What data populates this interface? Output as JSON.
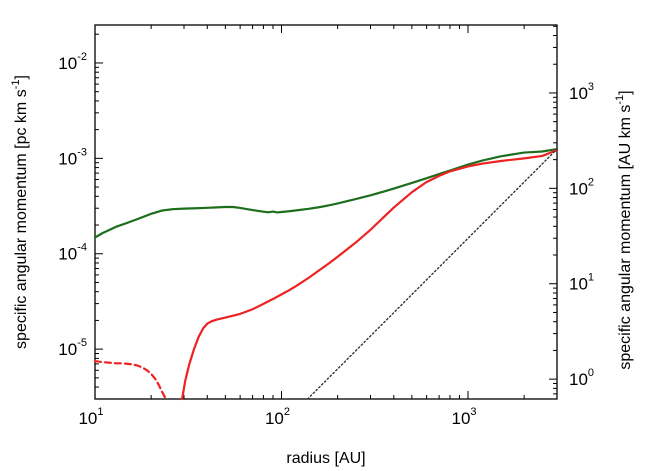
{
  "chart_data": {
    "type": "line",
    "xlabel": "radius [AU]",
    "ylabel_left": "specific angular momentum [pc km s",
    "ylabel_left_exp": "-1",
    "ylabel_left_close": "]",
    "ylabel_right": "specific angular momentum [AU km s",
    "ylabel_right_exp": "-1",
    "ylabel_right_close": "]",
    "xscale": "log",
    "yscale": "log",
    "xlim": [
      10,
      3000
    ],
    "ylim": [
      3e-06,
      0.025
    ],
    "grid": false,
    "x_ticks": [
      {
        "base": "10",
        "exp": "1",
        "value": 10
      },
      {
        "base": "10",
        "exp": "2",
        "value": 100
      },
      {
        "base": "10",
        "exp": "3",
        "value": 1000
      }
    ],
    "y_left_ticks": [
      {
        "base": "10",
        "exp": "-2",
        "value": 0.01
      },
      {
        "base": "10",
        "exp": "-3",
        "value": 0.001
      },
      {
        "base": "10",
        "exp": "-4",
        "value": 0.0001
      },
      {
        "base": "10",
        "exp": "-5",
        "value": 1e-05
      }
    ],
    "y_right_ticks": [
      {
        "base": "10",
        "exp": "3",
        "value": 1000
      },
      {
        "base": "10",
        "exp": "2",
        "value": 100
      },
      {
        "base": "10",
        "exp": "1",
        "value": 10
      },
      {
        "base": "10",
        "exp": "0",
        "value": 1
      }
    ],
    "right_axis_factor": 206265,
    "series": [
      {
        "color": "#1e6e1e",
        "style": "solid",
        "x": [
          10,
          11,
          13,
          15,
          17,
          20,
          23,
          26,
          30,
          35,
          40,
          45,
          50,
          55,
          60,
          65,
          70,
          75,
          80,
          85,
          90,
          95,
          100,
          110,
          120,
          140,
          160,
          180,
          200,
          250,
          300,
          350,
          400,
          500,
          600,
          700,
          800,
          1000,
          1200,
          1500,
          2000,
          2500,
          3000
        ],
        "y": [
          0.000148,
          0.000165,
          0.000192,
          0.000212,
          0.000232,
          0.000262,
          0.000284,
          0.000293,
          0.000297,
          0.0003,
          0.000303,
          0.000306,
          0.000309,
          0.000309,
          0.000302,
          0.000294,
          0.000287,
          0.000281,
          0.000276,
          0.000272,
          0.000277,
          0.000271,
          0.000274,
          0.000279,
          0.000285,
          0.000296,
          0.000308,
          0.000322,
          0.000337,
          0.000374,
          0.00041,
          0.000446,
          0.000482,
          0.000552,
          0.00062,
          0.000684,
          0.000745,
          0.00086,
          0.00095,
          0.00105,
          0.00115,
          0.00118,
          0.00125
        ]
      },
      {
        "color": "#ee2222",
        "style": "solid",
        "x": [
          29.3,
          30.5,
          32,
          34,
          36,
          38,
          40,
          42,
          45,
          50,
          55,
          60,
          70,
          80,
          90,
          100,
          110,
          120,
          140,
          160,
          180,
          200,
          250,
          300,
          350,
          400,
          500,
          600,
          700,
          800,
          1000,
          1200,
          1500,
          2000,
          2500,
          3000
        ],
        "y": [
          3e-06,
          4.7e-06,
          6.9e-06,
          1.01e-05,
          1.35e-05,
          1.65e-05,
          1.85e-05,
          1.95e-05,
          2.04e-05,
          2.14e-05,
          2.24e-05,
          2.34e-05,
          2.62e-05,
          2.98e-05,
          3.35e-05,
          3.75e-05,
          4.15e-05,
          4.6e-05,
          5.6e-05,
          6.75e-05,
          7.95e-05,
          9.3e-05,
          0.000131,
          0.000178,
          0.000238,
          0.000305,
          0.000442,
          0.000565,
          0.000655,
          0.00073,
          0.000822,
          0.000882,
          0.000938,
          0.001,
          0.00106,
          0.00122
        ]
      },
      {
        "color": "#ee2222",
        "style": "dashed",
        "x": [
          10,
          11,
          12,
          13,
          14,
          15,
          16,
          17,
          18,
          19,
          20,
          21,
          22,
          23,
          24
        ],
        "y": [
          7.5e-06,
          7.3e-06,
          7.2e-06,
          7.1e-06,
          7.1e-06,
          7e-06,
          6.9e-06,
          6.7e-06,
          6.4e-06,
          6e-06,
          5.5e-06,
          4.9e-06,
          4.2e-06,
          3.5e-06,
          3e-06
        ]
      },
      {
        "color": "#333333",
        "style": "dotted",
        "x": [
          138,
          3000
        ],
        "y": [
          3e-06,
          0.00125
        ]
      }
    ]
  }
}
